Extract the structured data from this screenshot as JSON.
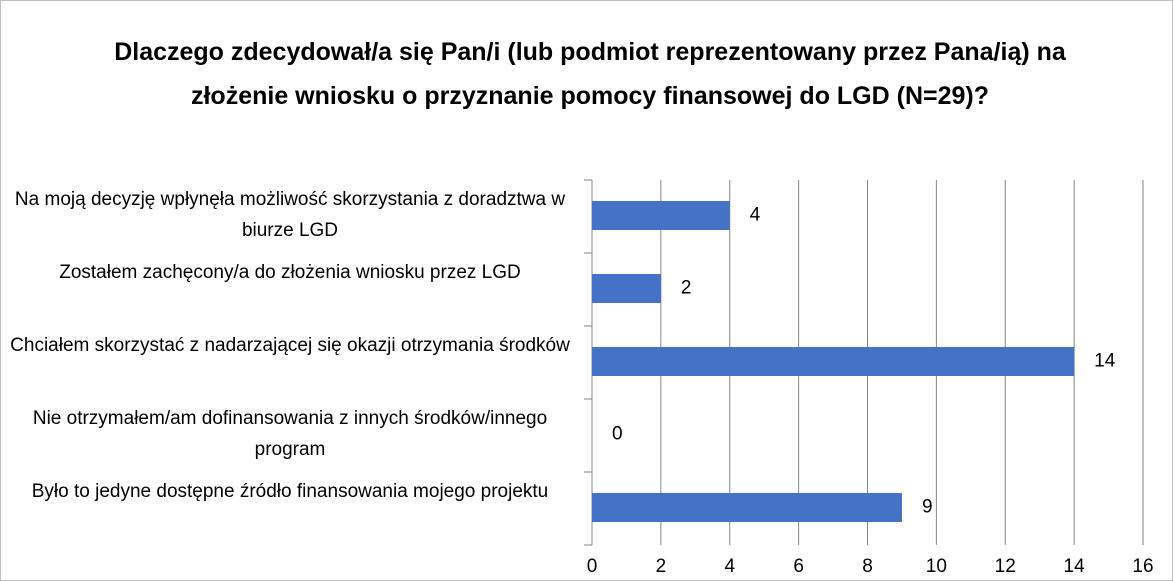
{
  "chart_data": {
    "type": "bar",
    "orientation": "horizontal",
    "title": "Dlaczego zdecydował/a się Pan/i (lub podmiot reprezentowany przez Pana/ią) na złożenie wniosku o przyznanie pomocy finansowej do LGD (N=29)?",
    "categories": [
      "Na moją decyzję wpłynęła możliwość skorzystania z doradztwa w biurze LGD",
      "Zostałem zachęcony/a do złożenia wniosku przez LGD",
      "Chciałem skorzystać z nadarzającej się okazji otrzymania środków",
      "Nie otrzymałem/am dofinansowania z innych środków/innego program",
      "Było to jedyne dostępne źródło finansowania mojego projektu"
    ],
    "values": [
      4,
      2,
      14,
      0,
      9
    ],
    "color": "#4472c4",
    "xlim": [
      0,
      16
    ],
    "xticks": [
      0,
      2,
      4,
      6,
      8,
      10,
      12,
      14,
      16
    ],
    "grid": true
  }
}
